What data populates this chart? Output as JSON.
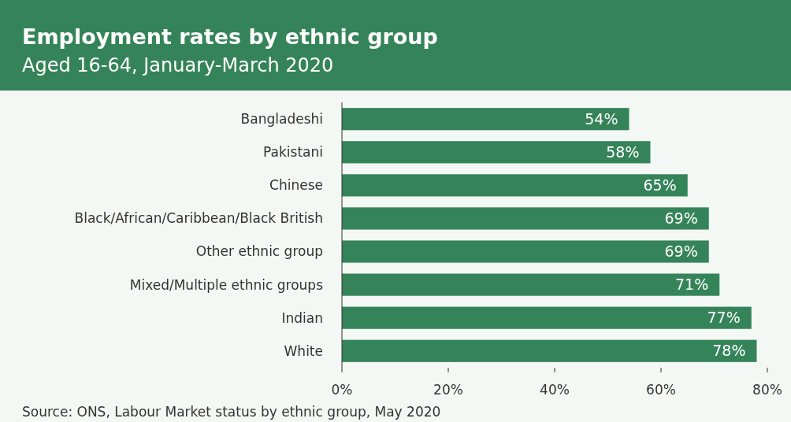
{
  "chart_data": {
    "type": "bar",
    "orientation": "horizontal",
    "title": "Employment rates by ethnic group",
    "subtitle": "Aged 16-64, January-March 2020",
    "categories": [
      "Bangladeshi",
      "Pakistani",
      "Chinese",
      "Black/African/Caribbean/Black British",
      "Other ethnic group",
      "Mixed/Multiple ethnic groups",
      "Indian",
      "White"
    ],
    "values": [
      54,
      58,
      65,
      69,
      69,
      71,
      77,
      78
    ],
    "value_labels": [
      "54%",
      "58%",
      "65%",
      "69%",
      "69%",
      "71%",
      "77%",
      "78%"
    ],
    "color": "#358459",
    "xlim": [
      0,
      80
    ],
    "xticks": [
      {
        "value": 0,
        "label": "0%"
      },
      {
        "value": 20,
        "label": "20%"
      },
      {
        "value": 40,
        "label": "40%"
      },
      {
        "value": 60,
        "label": "60%"
      },
      {
        "value": 80,
        "label": "80%"
      }
    ],
    "grid": false,
    "annotations": [
      "Source: ONS, Labour Market status by ethnic group, May 2020"
    ]
  }
}
